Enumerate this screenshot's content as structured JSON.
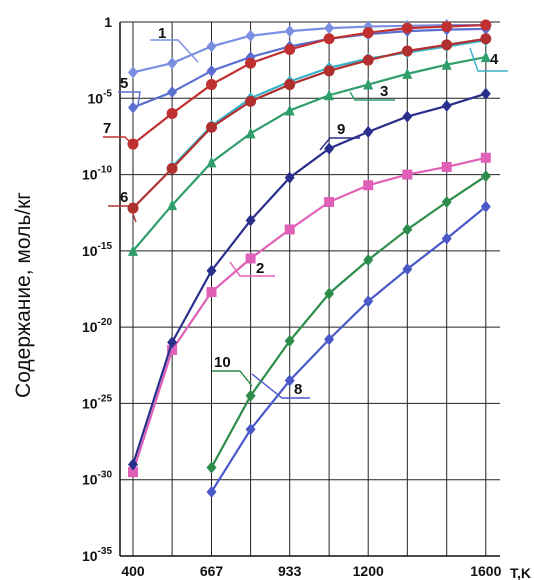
{
  "chart_data": {
    "type": "line",
    "ylabel": "Содержание, моль/кг",
    "xlabel": "T,K",
    "y_scale": "log10",
    "ylim_exponent": [
      -35,
      0
    ],
    "y_ticks": [
      {
        "base": "1",
        "exp": ""
      },
      {
        "base": "10",
        "exp": "-5"
      },
      {
        "base": "10",
        "exp": "-10"
      },
      {
        "base": "10",
        "exp": "-15"
      },
      {
        "base": "10",
        "exp": "-20"
      },
      {
        "base": "10",
        "exp": "-25"
      },
      {
        "base": "10",
        "exp": "-30"
      },
      {
        "base": "10",
        "exp": "-35"
      }
    ],
    "y_tick_exponents": [
      0,
      -5,
      -10,
      -15,
      -20,
      -25,
      -30,
      -35
    ],
    "x_ticks": [
      "400",
      "667",
      "933",
      "1200",
      "1600"
    ],
    "x_tick_values": [
      400,
      667,
      933,
      1200,
      1600
    ],
    "x_grid": [
      400,
      533,
      667,
      800,
      933,
      1067,
      1200,
      1333,
      1467,
      1600
    ],
    "grid": true,
    "x": [
      400,
      533,
      667,
      800,
      933,
      1067,
      1200,
      1333,
      1467,
      1600
    ],
    "series": [
      {
        "name": "1",
        "color": "#7b8fe0",
        "marker": "diamond",
        "log10_values": [
          -3.3,
          -2.7,
          -1.6,
          -0.9,
          -0.6,
          -0.4,
          -0.3,
          -0.25,
          -0.2,
          -0.2
        ]
      },
      {
        "name": "2",
        "color": "#e060b8",
        "marker": "square",
        "log10_values": [
          -29.5,
          -21.5,
          -17.7,
          -15.5,
          -13.6,
          -11.8,
          -10.7,
          -10.0,
          -9.5,
          -8.9
        ]
      },
      {
        "name": "3",
        "color": "#2f9e6a",
        "marker": "triangle",
        "log10_values": [
          -15.0,
          -12.0,
          -9.2,
          -7.3,
          -5.8,
          -4.8,
          -4.1,
          -3.4,
          -2.8,
          -2.3
        ]
      },
      {
        "name": "4",
        "color": "#3ab0c8",
        "marker": "diamond",
        "log10_values": [
          null,
          -9.5,
          -6.8,
          -5.0,
          -3.9,
          -3.0,
          -2.4,
          -2.0,
          -1.6,
          -1.2
        ]
      },
      {
        "name": "5",
        "color": "#5a6fd0",
        "marker": "diamond",
        "log10_values": [
          -5.6,
          -4.6,
          -3.2,
          -2.3,
          -1.6,
          -1.1,
          -0.8,
          -0.6,
          -0.5,
          -0.45
        ]
      },
      {
        "name": "6",
        "color": "#b03030",
        "marker": "circle",
        "log10_values": [
          -12.2,
          -9.6,
          -6.9,
          -5.2,
          -4.1,
          -3.2,
          -2.5,
          -1.9,
          -1.5,
          -1.1
        ]
      },
      {
        "name": "7",
        "color": "#c03030",
        "marker": "circle",
        "log10_values": [
          -8.0,
          -6.0,
          -4.1,
          -2.7,
          -1.8,
          -1.1,
          -0.7,
          -0.4,
          -0.3,
          -0.2
        ]
      },
      {
        "name": "8",
        "color": "#4a58c8",
        "marker": "diamond",
        "log10_values": [
          null,
          null,
          -30.8,
          -26.7,
          -23.5,
          -20.8,
          -18.3,
          -16.2,
          -14.2,
          -12.1
        ]
      },
      {
        "name": "9",
        "color": "#2a2f8c",
        "marker": "diamond",
        "log10_values": [
          -29.0,
          -21.0,
          -16.3,
          -13.0,
          -10.2,
          -8.3,
          -7.2,
          -6.2,
          -5.5,
          -4.7
        ]
      },
      {
        "name": "10",
        "color": "#2e8c4a",
        "marker": "diamond",
        "log10_values": [
          null,
          null,
          -29.2,
          -24.5,
          -20.9,
          -17.8,
          -15.6,
          -13.6,
          -11.8,
          -10.1
        ]
      }
    ]
  }
}
